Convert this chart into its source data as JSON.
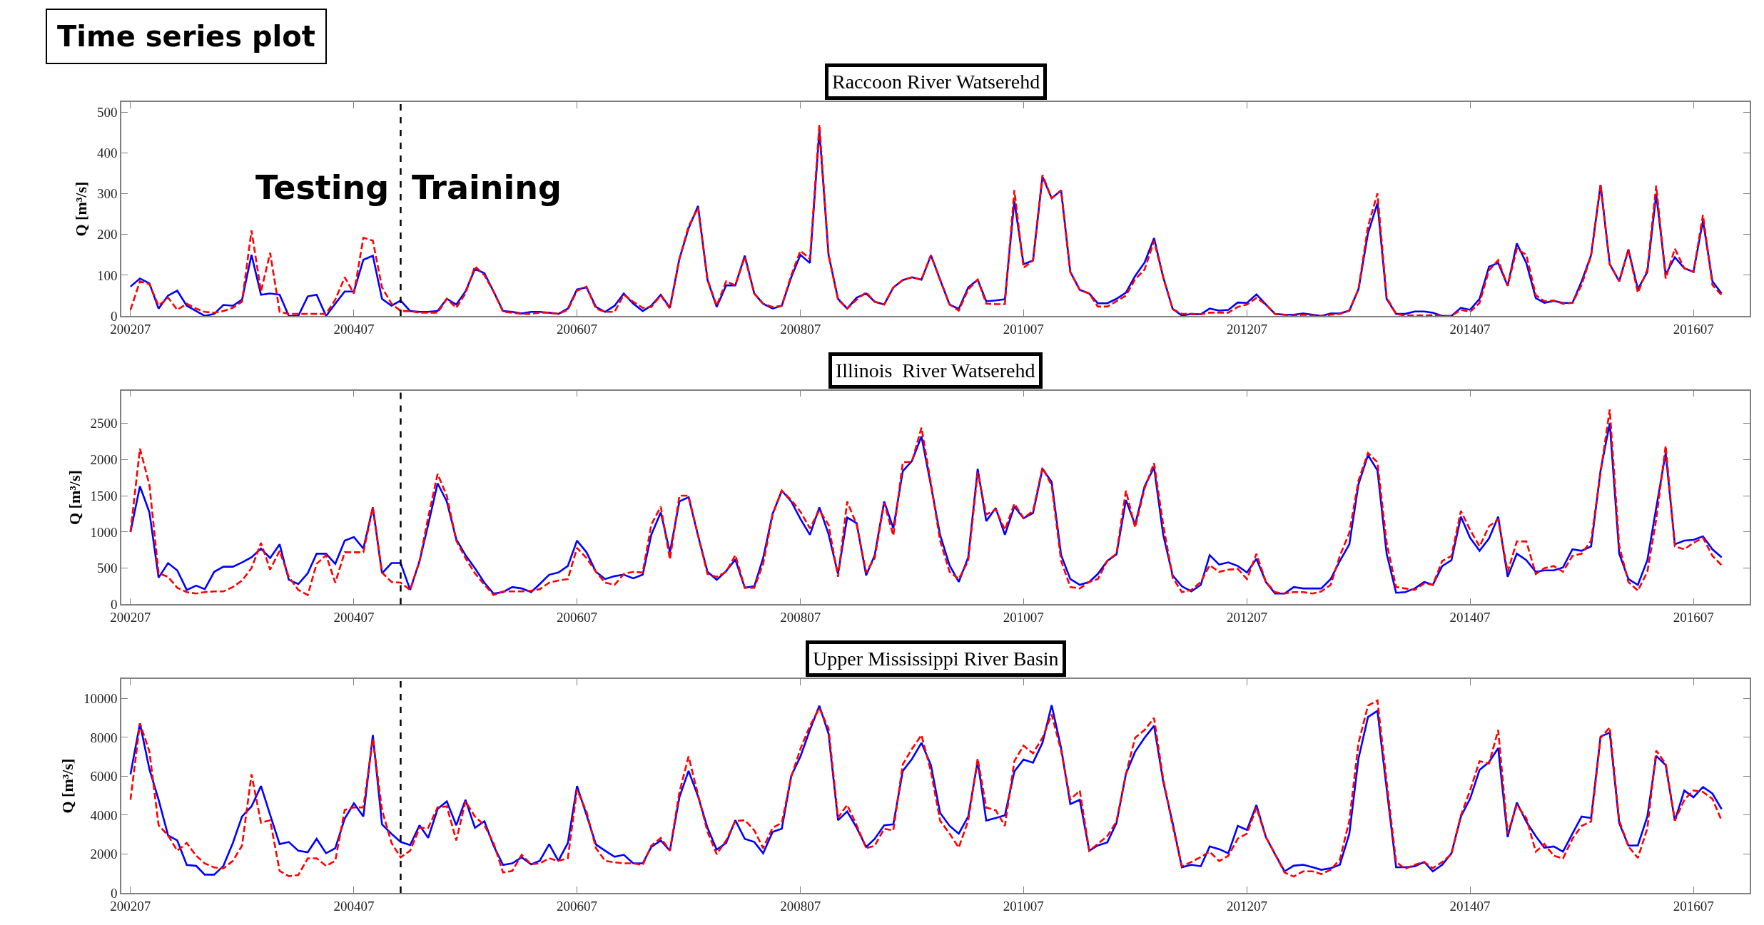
{
  "chart_data": [
    {
      "type": "line",
      "title": "Raccoon River Watserehd",
      "ylabel": "Q [m³/s]",
      "annotations": [
        "Time series plot",
        "Testing",
        "Training"
      ],
      "x": [
        "2002-07",
        "2002-08",
        "2002-09",
        "2002-10",
        "2002-11",
        "2002-12",
        "2003-01",
        "2003-02",
        "2003-03",
        "2003-04",
        "2003-05",
        "2003-06",
        "2003-07",
        "2003-08",
        "2003-09",
        "2003-10",
        "2003-11",
        "2003-12",
        "2004-01",
        "2004-02",
        "2004-03",
        "2004-04",
        "2004-05",
        "2004-06",
        "2004-07",
        "2004-08",
        "2004-09",
        "2004-10",
        "2004-11",
        "2004-12",
        "2005-01",
        "2005-02",
        "2005-03",
        "2005-04",
        "2005-05",
        "2005-06",
        "2005-07",
        "2005-08",
        "2005-09",
        "2005-10",
        "2005-11",
        "2005-12",
        "2006-01",
        "2006-02",
        "2006-03",
        "2006-04",
        "2006-05",
        "2006-06",
        "2006-07",
        "2006-08",
        "2006-09",
        "2006-10",
        "2006-11",
        "2006-12",
        "2007-01",
        "2007-02",
        "2007-03",
        "2007-04",
        "2007-05",
        "2007-06",
        "2007-07",
        "2007-08",
        "2007-09",
        "2007-10",
        "2007-11",
        "2007-12",
        "2008-01",
        "2008-02",
        "2008-03",
        "2008-04",
        "2008-05",
        "2008-06",
        "2008-07",
        "2008-08",
        "2008-09",
        "2008-10",
        "2008-11",
        "2008-12",
        "2009-01",
        "2009-02",
        "2009-03",
        "2009-04",
        "2009-05",
        "2009-06",
        "2009-07",
        "2009-08",
        "2009-09",
        "2009-10",
        "2009-11",
        "2009-12",
        "2010-01",
        "2010-02",
        "2010-03",
        "2010-04",
        "2010-05",
        "2010-06",
        "2010-07",
        "2010-08",
        "2010-09",
        "2010-10",
        "2010-11",
        "2010-12",
        "2011-01",
        "2011-02",
        "2011-03",
        "2011-04",
        "2011-05",
        "2011-06",
        "2011-07",
        "2011-08",
        "2011-09",
        "2011-10",
        "2011-11",
        "2011-12",
        "2012-01",
        "2012-02",
        "2012-03",
        "2012-04",
        "2012-05",
        "2012-06",
        "2012-07",
        "2012-08",
        "2012-09",
        "2012-10",
        "2012-11",
        "2012-12",
        "2013-01",
        "2013-02",
        "2013-03",
        "2013-04",
        "2013-05",
        "2013-06",
        "2013-07",
        "2013-08",
        "2013-09",
        "2013-10",
        "2013-11",
        "2013-12",
        "2014-01",
        "2014-02",
        "2014-03",
        "2014-04",
        "2014-05",
        "2014-06",
        "2014-07",
        "2014-08",
        "2014-09",
        "2014-10",
        "2014-11",
        "2014-12",
        "2015-01",
        "2015-02",
        "2015-03",
        "2015-04",
        "2015-05",
        "2015-06",
        "2015-07",
        "2015-08",
        "2015-09",
        "2015-10",
        "2015-11",
        "2015-12",
        "2016-01",
        "2016-02",
        "2016-03",
        "2016-04",
        "2016-05",
        "2016-06",
        "2016-07",
        "2016-08",
        "2016-09",
        "2016-10"
      ],
      "xlim": [
        "2002-06-01",
        "2017-01-01"
      ],
      "xticks": [
        {
          "value": "2002-07",
          "label": "200207"
        },
        {
          "value": "2004-07",
          "label": "200407"
        },
        {
          "value": "2006-07",
          "label": "200607"
        },
        {
          "value": "2008-07",
          "label": "200807"
        },
        {
          "value": "2010-07",
          "label": "201007"
        },
        {
          "value": "2012-07",
          "label": "201207"
        },
        {
          "value": "2014-07",
          "label": "201407"
        },
        {
          "value": "2016-07",
          "label": "201607"
        }
      ],
      "ylim": [
        0,
        525
      ],
      "yticks": [
        0,
        100,
        200,
        300,
        400,
        500
      ],
      "ref_lines": [
        {
          "axis": "x",
          "value": "2004-12",
          "color": "#000000",
          "line_style": "dashed"
        }
      ],
      "series": [
        {
          "color": "#0000ff",
          "line_style": "solid",
          "values": [
            72,
            92,
            80,
            18,
            50,
            62,
            25,
            12,
            0,
            5,
            27,
            25,
            40,
            150,
            52,
            55,
            52,
            0,
            0,
            48,
            52,
            0,
            30,
            60,
            60,
            138,
            148,
            42,
            25,
            38,
            12,
            10,
            10,
            12,
            42,
            28,
            60,
            115,
            105,
            60,
            12,
            10,
            6,
            10,
            10,
            8,
            5,
            18,
            65,
            70,
            22,
            10,
            25,
            55,
            30,
            12,
            25,
            52,
            20,
            140,
            215,
            270,
            88,
            22,
            75,
            75,
            148,
            55,
            30,
            18,
            25,
            95,
            150,
            130,
            455,
            150,
            42,
            18,
            45,
            55,
            35,
            28,
            70,
            88,
            95,
            89,
            149,
            89,
            28,
            17,
            70,
            89,
            36,
            38,
            41,
            282,
            127,
            136,
            342,
            289,
            308,
            108,
            64,
            55,
            31,
            31,
            42,
            57,
            98,
            131,
            191,
            95,
            17,
            1,
            5,
            4,
            18,
            13,
            15,
            33,
            32,
            53,
            28,
            5,
            3,
            3,
            6,
            3,
            0,
            6,
            6,
            13,
            66,
            203,
            277,
            42,
            5,
            5,
            11,
            11,
            8,
            0,
            0,
            20,
            15,
            42,
            121,
            130,
            74,
            178,
            130,
            44,
            32,
            37,
            32,
            32,
            85,
            149,
            322,
            127,
            85,
            163,
            66,
            108,
            299,
            102,
            144,
            117,
            108,
            234,
            85,
            55
          ]
        },
        {
          "color": "#ff0000",
          "line_style": "dashed",
          "values": [
            15,
            85,
            78,
            25,
            45,
            15,
            30,
            18,
            10,
            8,
            12,
            20,
            35,
            210,
            60,
            155,
            10,
            5,
            5,
            5,
            5,
            5,
            40,
            95,
            55,
            192,
            185,
            70,
            30,
            12,
            12,
            8,
            8,
            8,
            42,
            20,
            55,
            122,
            100,
            60,
            10,
            8,
            5,
            5,
            8,
            8,
            5,
            15,
            62,
            72,
            18,
            10,
            10,
            52,
            35,
            20,
            22,
            50,
            18,
            140,
            220,
            265,
            90,
            25,
            85,
            75,
            145,
            55,
            30,
            22,
            25,
            100,
            160,
            140,
            470,
            150,
            40,
            18,
            40,
            58,
            35,
            28,
            70,
            88,
            95,
            89,
            149,
            89,
            28,
            13,
            65,
            89,
            30,
            29,
            29,
            309,
            118,
            136,
            346,
            289,
            308,
            108,
            64,
            55,
            23,
            23,
            36,
            50,
            90,
            114,
            184,
            95,
            17,
            5,
            5,
            4,
            8,
            8,
            8,
            22,
            28,
            44,
            28,
            5,
            3,
            1,
            3,
            1,
            0,
            3,
            5,
            13,
            66,
            220,
            301,
            45,
            5,
            1,
            1,
            1,
            2,
            0,
            0,
            15,
            10,
            32,
            112,
            137,
            74,
            165,
            150,
            51,
            36,
            38,
            30,
            32,
            76,
            149,
            322,
            127,
            85,
            163,
            57,
            114,
            320,
            92,
            165,
            117,
            108,
            248,
            76,
            51
          ]
        }
      ]
    },
    {
      "type": "line",
      "title": "Illinois  River Watserehd",
      "ylabel": "Q [m³/s]",
      "x": [
        "2002-07",
        "2002-08",
        "2002-09",
        "2002-10",
        "2002-11",
        "2002-12",
        "2003-01",
        "2003-02",
        "2003-03",
        "2003-04",
        "2003-05",
        "2003-06",
        "2003-07",
        "2003-08",
        "2003-09",
        "2003-10",
        "2003-11",
        "2003-12",
        "2004-01",
        "2004-02",
        "2004-03",
        "2004-04",
        "2004-05",
        "2004-06",
        "2004-07",
        "2004-08",
        "2004-09",
        "2004-10",
        "2004-11",
        "2004-12",
        "2005-01",
        "2005-02",
        "2005-03",
        "2005-04",
        "2005-05",
        "2005-06",
        "2005-07",
        "2005-08",
        "2005-09",
        "2005-10",
        "2005-11",
        "2005-12",
        "2006-01",
        "2006-02",
        "2006-03",
        "2006-04",
        "2006-05",
        "2006-06",
        "2006-07",
        "2006-08",
        "2006-09",
        "2006-10",
        "2006-11",
        "2006-12",
        "2007-01",
        "2007-02",
        "2007-03",
        "2007-04",
        "2007-05",
        "2007-06",
        "2007-07",
        "2007-08",
        "2007-09",
        "2007-10",
        "2007-11",
        "2007-12",
        "2008-01",
        "2008-02",
        "2008-03",
        "2008-04",
        "2008-05",
        "2008-06",
        "2008-07",
        "2008-08",
        "2008-09",
        "2008-10",
        "2008-11",
        "2008-12",
        "2009-01",
        "2009-02",
        "2009-03",
        "2009-04",
        "2009-05",
        "2009-06",
        "2009-07",
        "2009-08",
        "2009-09",
        "2009-10",
        "2009-11",
        "2009-12",
        "2010-01",
        "2010-02",
        "2010-03",
        "2010-04",
        "2010-05",
        "2010-06",
        "2010-07",
        "2010-08",
        "2010-09",
        "2010-10",
        "2010-11",
        "2010-12",
        "2011-01",
        "2011-02",
        "2011-03",
        "2011-04",
        "2011-05",
        "2011-06",
        "2011-07",
        "2011-08",
        "2011-09",
        "2011-10",
        "2011-11",
        "2011-12",
        "2012-01",
        "2012-02",
        "2012-03",
        "2012-04",
        "2012-05",
        "2012-06",
        "2012-07",
        "2012-08",
        "2012-09",
        "2012-10",
        "2012-11",
        "2012-12",
        "2013-01",
        "2013-02",
        "2013-03",
        "2013-04",
        "2013-05",
        "2013-06",
        "2013-07",
        "2013-08",
        "2013-09",
        "2013-10",
        "2013-11",
        "2013-12",
        "2014-01",
        "2014-02",
        "2014-03",
        "2014-04",
        "2014-05",
        "2014-06",
        "2014-07",
        "2014-08",
        "2014-09",
        "2014-10",
        "2014-11",
        "2014-12",
        "2015-01",
        "2015-02",
        "2015-03",
        "2015-04",
        "2015-05",
        "2015-06",
        "2015-07",
        "2015-08",
        "2015-09",
        "2015-10",
        "2015-11",
        "2015-12",
        "2016-01",
        "2016-02",
        "2016-03",
        "2016-04",
        "2016-05",
        "2016-06",
        "2016-07",
        "2016-08",
        "2016-09",
        "2016-10"
      ],
      "xlim": [
        "2002-06-01",
        "2017-01-01"
      ],
      "xticks": [
        {
          "value": "2002-07",
          "label": "200207"
        },
        {
          "value": "2004-07",
          "label": "200407"
        },
        {
          "value": "2006-07",
          "label": "200607"
        },
        {
          "value": "2008-07",
          "label": "200807"
        },
        {
          "value": "2010-07",
          "label": "201007"
        },
        {
          "value": "2012-07",
          "label": "201207"
        },
        {
          "value": "2014-07",
          "label": "201407"
        },
        {
          "value": "2016-07",
          "label": "201607"
        }
      ],
      "ylim": [
        0,
        2950
      ],
      "yticks": [
        0,
        500,
        1000,
        1500,
        2000,
        2500
      ],
      "ref_lines": [
        {
          "axis": "x",
          "value": "2004-12",
          "color": "#000000",
          "line_style": "dashed"
        }
      ],
      "series": [
        {
          "color": "#0000ff",
          "line_style": "solid",
          "values": [
            1000,
            1630,
            1270,
            370,
            570,
            470,
            200,
            260,
            210,
            450,
            520,
            520,
            580,
            650,
            770,
            640,
            830,
            340,
            280,
            430,
            700,
            700,
            560,
            880,
            930,
            770,
            1340,
            430,
            570,
            570,
            200,
            600,
            1100,
            1670,
            1420,
            900,
            680,
            500,
            300,
            150,
            170,
            240,
            220,
            170,
            280,
            410,
            440,
            530,
            880,
            720,
            450,
            350,
            390,
            410,
            360,
            410,
            960,
            1270,
            720,
            1420,
            1480,
            950,
            450,
            340,
            460,
            620,
            230,
            250,
            640,
            1250,
            1570,
            1420,
            1180,
            960,
            1340,
            970,
            420,
            1200,
            1120,
            400,
            680,
            1420,
            1050,
            1840,
            1980,
            2320,
            1640,
            960,
            540,
            310,
            650,
            1870,
            1150,
            1330,
            960,
            1350,
            1190,
            1260,
            1870,
            1690,
            680,
            350,
            270,
            310,
            420,
            600,
            690,
            1440,
            1100,
            1630,
            1890,
            960,
            400,
            250,
            180,
            270,
            680,
            550,
            580,
            530,
            440,
            630,
            310,
            150,
            150,
            240,
            220,
            220,
            220,
            350,
            600,
            830,
            1660,
            2060,
            1850,
            700,
            160,
            170,
            220,
            310,
            270,
            530,
            610,
            1210,
            920,
            740,
            910,
            1210,
            380,
            700,
            610,
            450,
            470,
            470,
            510,
            760,
            740,
            800,
            1850,
            2500,
            700,
            350,
            270,
            610,
            1330,
            2090,
            830,
            880,
            890,
            940,
            760,
            650
          ]
        },
        {
          "color": "#ff0000",
          "line_style": "dashed",
          "values": [
            1000,
            2150,
            1650,
            430,
            380,
            230,
            170,
            150,
            170,
            180,
            180,
            240,
            330,
            500,
            850,
            480,
            740,
            380,
            200,
            130,
            560,
            680,
            300,
            720,
            720,
            720,
            1340,
            440,
            310,
            300,
            200,
            600,
            1200,
            1800,
            1500,
            880,
            640,
            430,
            270,
            130,
            180,
            180,
            180,
            190,
            210,
            300,
            330,
            350,
            780,
            640,
            450,
            300,
            270,
            420,
            450,
            440,
            1100,
            1350,
            620,
            1500,
            1500,
            950,
            420,
            380,
            450,
            680,
            230,
            230,
            560,
            1240,
            1570,
            1440,
            1280,
            1050,
            1300,
            1100,
            380,
            1420,
            1100,
            440,
            640,
            1400,
            950,
            1960,
            1970,
            2440,
            1670,
            880,
            450,
            350,
            600,
            1820,
            1240,
            1310,
            1030,
            1390,
            1190,
            1290,
            1890,
            1640,
            600,
            240,
            220,
            310,
            350,
            600,
            700,
            1570,
            1060,
            1600,
            1950,
            1100,
            370,
            170,
            200,
            310,
            540,
            450,
            480,
            490,
            350,
            700,
            310,
            170,
            150,
            170,
            170,
            150,
            180,
            270,
            670,
            990,
            1710,
            2090,
            1960,
            850,
            240,
            220,
            200,
            290,
            270,
            600,
            670,
            1290,
            1030,
            800,
            1080,
            1170,
            450,
            870,
            870,
            420,
            500,
            530,
            450,
            670,
            700,
            880,
            1820,
            2690,
            810,
            310,
            190,
            450,
            1170,
            2190,
            800,
            760,
            850,
            920,
            670,
            540
          ]
        }
      ]
    },
    {
      "type": "line",
      "title": "Upper Mississippi River Basin",
      "ylabel": "Q [m³/s]",
      "x": [
        "2002-07",
        "2002-08",
        "2002-09",
        "2002-10",
        "2002-11",
        "2002-12",
        "2003-01",
        "2003-02",
        "2003-03",
        "2003-04",
        "2003-05",
        "2003-06",
        "2003-07",
        "2003-08",
        "2003-09",
        "2003-10",
        "2003-11",
        "2003-12",
        "2004-01",
        "2004-02",
        "2004-03",
        "2004-04",
        "2004-05",
        "2004-06",
        "2004-07",
        "2004-08",
        "2004-09",
        "2004-10",
        "2004-11",
        "2004-12",
        "2005-01",
        "2005-02",
        "2005-03",
        "2005-04",
        "2005-05",
        "2005-06",
        "2005-07",
        "2005-08",
        "2005-09",
        "2005-10",
        "2005-11",
        "2005-12",
        "2006-01",
        "2006-02",
        "2006-03",
        "2006-04",
        "2006-05",
        "2006-06",
        "2006-07",
        "2006-08",
        "2006-09",
        "2006-10",
        "2006-11",
        "2006-12",
        "2007-01",
        "2007-02",
        "2007-03",
        "2007-04",
        "2007-05",
        "2007-06",
        "2007-07",
        "2007-08",
        "2007-09",
        "2007-10",
        "2007-11",
        "2007-12",
        "2008-01",
        "2008-02",
        "2008-03",
        "2008-04",
        "2008-05",
        "2008-06",
        "2008-07",
        "2008-08",
        "2008-09",
        "2008-10",
        "2008-11",
        "2008-12",
        "2009-01",
        "2009-02",
        "2009-03",
        "2009-04",
        "2009-05",
        "2009-06",
        "2009-07",
        "2009-08",
        "2009-09",
        "2009-10",
        "2009-11",
        "2009-12",
        "2010-01",
        "2010-02",
        "2010-03",
        "2010-04",
        "2010-05",
        "2010-06",
        "2010-07",
        "2010-08",
        "2010-09",
        "2010-10",
        "2010-11",
        "2010-12",
        "2011-01",
        "2011-02",
        "2011-03",
        "2011-04",
        "2011-05",
        "2011-06",
        "2011-07",
        "2011-08",
        "2011-09",
        "2011-10",
        "2011-11",
        "2011-12",
        "2012-01",
        "2012-02",
        "2012-03",
        "2012-04",
        "2012-05",
        "2012-06",
        "2012-07",
        "2012-08",
        "2012-09",
        "2012-10",
        "2012-11",
        "2012-12",
        "2013-01",
        "2013-02",
        "2013-03",
        "2013-04",
        "2013-05",
        "2013-06",
        "2013-07",
        "2013-08",
        "2013-09",
        "2013-10",
        "2013-11",
        "2013-12",
        "2014-01",
        "2014-02",
        "2014-03",
        "2014-04",
        "2014-05",
        "2014-06",
        "2014-07",
        "2014-08",
        "2014-09",
        "2014-10",
        "2014-11",
        "2014-12",
        "2015-01",
        "2015-02",
        "2015-03",
        "2015-04",
        "2015-05",
        "2015-06",
        "2015-07",
        "2015-08",
        "2015-09",
        "2015-10",
        "2015-11",
        "2015-12",
        "2016-01",
        "2016-02",
        "2016-03",
        "2016-04",
        "2016-05",
        "2016-06",
        "2016-07",
        "2016-08",
        "2016-09",
        "2016-10"
      ],
      "xlim": [
        "2002-06-01",
        "2017-01-01"
      ],
      "xticks": [
        {
          "value": "2002-07",
          "label": "200207"
        },
        {
          "value": "2004-07",
          "label": "200407"
        },
        {
          "value": "2006-07",
          "label": "200607"
        },
        {
          "value": "2008-07",
          "label": "200807"
        },
        {
          "value": "2010-07",
          "label": "201007"
        },
        {
          "value": "2012-07",
          "label": "201207"
        },
        {
          "value": "2014-07",
          "label": "201407"
        },
        {
          "value": "2016-07",
          "label": "201607"
        }
      ],
      "ylim": [
        0,
        11000
      ],
      "yticks": [
        0,
        2000,
        4000,
        6000,
        8000,
        10000
      ],
      "ref_lines": [
        {
          "axis": "x",
          "value": "2004-12",
          "color": "#000000",
          "line_style": "dashed"
        }
      ],
      "series": [
        {
          "color": "#0000ff",
          "line_style": "solid",
          "values": [
            6100,
            8720,
            6360,
            4790,
            2960,
            2700,
            1440,
            1390,
            940,
            940,
            1390,
            2570,
            3930,
            4450,
            5500,
            4010,
            2510,
            2620,
            2170,
            2090,
            2780,
            2040,
            2300,
            3820,
            4610,
            3930,
            8120,
            3530,
            3040,
            2620,
            2460,
            3480,
            2830,
            4320,
            4710,
            3480,
            4790,
            3350,
            3690,
            2430,
            1440,
            1520,
            1830,
            1470,
            1650,
            2510,
            1650,
            2570,
            5500,
            4010,
            2490,
            2170,
            1860,
            1960,
            1520,
            1520,
            2360,
            2700,
            2170,
            4920,
            6280,
            4970,
            3350,
            2230,
            2570,
            3740,
            2780,
            2620,
            2040,
            3140,
            3300,
            6020,
            7020,
            8380,
            9630,
            8190,
            3740,
            4190,
            3350,
            2360,
            2780,
            3480,
            3530,
            6280,
            6890,
            7720,
            6570,
            4120,
            3450,
            3050,
            3930,
            6780,
            3720,
            3850,
            3990,
            6250,
            6860,
            6700,
            7720,
            9660,
            7450,
            4570,
            4790,
            2170,
            2440,
            2600,
            3590,
            6120,
            7260,
            7980,
            8600,
            5720,
            3590,
            1320,
            1450,
            1370,
            2390,
            2250,
            2040,
            3450,
            3240,
            4520,
            2870,
            1990,
            1110,
            1400,
            1450,
            1320,
            1190,
            1270,
            1450,
            3050,
            6920,
            9050,
            9370,
            5370,
            1320,
            1320,
            1370,
            1590,
            1110,
            1450,
            2040,
            3930,
            4840,
            6330,
            6730,
            7450,
            2870,
            4650,
            3670,
            2920,
            2330,
            2390,
            2120,
            3050,
            3930,
            3850,
            8040,
            8250,
            3590,
            2440,
            2440,
            3930,
            7050,
            6570,
            3720,
            5270,
            4920,
            5450,
            5110,
            4310
          ]
        },
        {
          "color": "#ff0000",
          "line_style": "dashed",
          "values": [
            4790,
            8720,
            7280,
            3480,
            2960,
            2170,
            2570,
            1910,
            1520,
            1310,
            1260,
            1650,
            2430,
            6100,
            3610,
            3740,
            1130,
            860,
            920,
            1780,
            1780,
            1390,
            1650,
            4270,
            4400,
            4400,
            7930,
            4270,
            2570,
            1830,
            2170,
            3350,
            3350,
            4400,
            4450,
            2700,
            4710,
            3930,
            3480,
            2570,
            1050,
            1130,
            1960,
            1470,
            1520,
            1780,
            1650,
            1780,
            5310,
            4190,
            2300,
            1650,
            1570,
            1520,
            1520,
            1440,
            2430,
            2830,
            2170,
            5180,
            7020,
            5050,
            3140,
            1990,
            2700,
            3690,
            3740,
            3220,
            2300,
            3350,
            3610,
            5970,
            7410,
            8590,
            9500,
            8460,
            3870,
            4530,
            3480,
            2300,
            2430,
            3300,
            3220,
            6620,
            7410,
            8120,
            6250,
            3720,
            3050,
            2330,
            3720,
            6920,
            4390,
            4250,
            3450,
            6780,
            7580,
            7180,
            7980,
            9180,
            7320,
            4790,
            5270,
            2170,
            2520,
            2920,
            3670,
            6120,
            7980,
            8380,
            9000,
            5850,
            3450,
            1370,
            1590,
            1850,
            2120,
            1640,
            1910,
            2790,
            3050,
            4390,
            2870,
            1990,
            1050,
            840,
            1110,
            1110,
            970,
            1190,
            1720,
            3720,
            7720,
            9640,
            9900,
            5720,
            1590,
            1240,
            1450,
            1590,
            1270,
            1590,
            1990,
            3990,
            5270,
            6780,
            6650,
            8380,
            3050,
            4520,
            3850,
            2120,
            2520,
            1910,
            1770,
            2790,
            3450,
            3670,
            7980,
            8520,
            3720,
            2390,
            1800,
            3320,
            7320,
            6650,
            3720,
            4790,
            5270,
            5190,
            4840,
            3720
          ]
        }
      ]
    }
  ]
}
